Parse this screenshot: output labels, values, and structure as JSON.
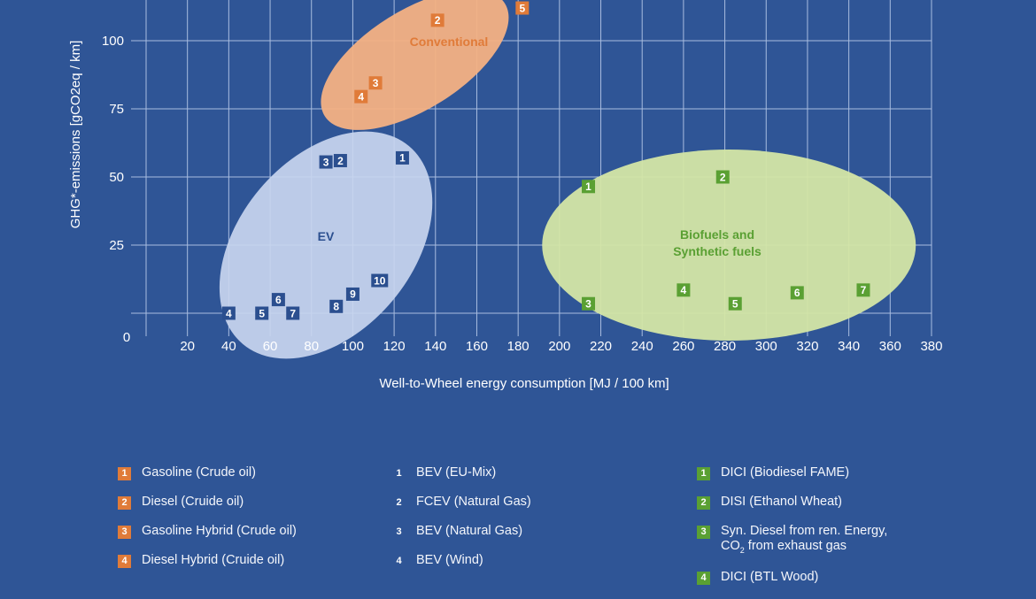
{
  "chart_data": {
    "type": "scatter",
    "title": "",
    "xlabel": "Well-to-Wheel energy consumption [MJ / 100 km]",
    "ylabel": "GHG*-emissions [gCO2eq / km]",
    "xlim": [
      0,
      380
    ],
    "ylim": [
      -8,
      115
    ],
    "x_ticks": [
      20,
      40,
      60,
      80,
      100,
      120,
      140,
      160,
      180,
      200,
      220,
      240,
      260,
      280,
      300,
      320,
      340,
      360,
      380
    ],
    "y_ticks": [
      25,
      50,
      75,
      100
    ],
    "origin_label": "0",
    "grid": true,
    "groups": [
      {
        "name": "Conventional",
        "color": "#e07b39",
        "ellipse_color": "#f4b183"
      },
      {
        "name": "EV",
        "color": "#2b4f8f",
        "ellipse_color": "#c9d6ef"
      },
      {
        "name": "Biofuels and Synthetic fuels",
        "color": "#5aa033",
        "ellipse_color": "#d4e6a5"
      }
    ],
    "series": [
      {
        "name": "Conventional",
        "points": [
          {
            "id": "2",
            "x": 141,
            "y": 107.5
          },
          {
            "id": "5",
            "x": 182,
            "y": 112
          },
          {
            "id": "3",
            "x": 111,
            "y": 84.5
          },
          {
            "id": "4",
            "x": 104,
            "y": 79.5
          }
        ]
      },
      {
        "name": "EV",
        "points": [
          {
            "id": "1",
            "x": 124,
            "y": 57
          },
          {
            "id": "2",
            "x": 94,
            "y": 56
          },
          {
            "id": "3",
            "x": 87,
            "y": 55.5
          },
          {
            "id": "10",
            "x": 113,
            "y": 12
          },
          {
            "id": "9",
            "x": 100,
            "y": 7
          },
          {
            "id": "8",
            "x": 92,
            "y": 2.5
          },
          {
            "id": "6",
            "x": 64,
            "y": 5
          },
          {
            "id": "7",
            "x": 71,
            "y": 0
          },
          {
            "id": "5",
            "x": 56,
            "y": 0
          },
          {
            "id": "4",
            "x": 40,
            "y": 0
          }
        ]
      },
      {
        "name": "Biofuels and Synthetic fuels",
        "points": [
          {
            "id": "1",
            "x": 214,
            "y": 46.5
          },
          {
            "id": "2",
            "x": 279,
            "y": 50
          },
          {
            "id": "3",
            "x": 214,
            "y": 3.5
          },
          {
            "id": "4",
            "x": 260,
            "y": 8.5
          },
          {
            "id": "5",
            "x": 285,
            "y": 3.5
          },
          {
            "id": "6",
            "x": 315,
            "y": 7.5
          },
          {
            "id": "7",
            "x": 347,
            "y": 8.5
          }
        ]
      }
    ]
  },
  "legend": {
    "col1": [
      {
        "num": "1",
        "label": "Gasoline (Crude oil)"
      },
      {
        "num": "2",
        "label": "Diesel (Cruide oil)"
      },
      {
        "num": "3",
        "label": "Gasoline Hybrid (Crude oil)"
      },
      {
        "num": "4",
        "label": "Diesel Hybrid (Cruide oil)"
      }
    ],
    "col2": [
      {
        "num": "1",
        "label": "BEV (EU-Mix)"
      },
      {
        "num": "2",
        "label": "FCEV (Natural Gas)"
      },
      {
        "num": "3",
        "label": "BEV (Natural Gas)"
      },
      {
        "num": "4",
        "label": "BEV (Wind)"
      }
    ],
    "col3": [
      {
        "num": "1",
        "label": "DICI (Biodiesel FAME)"
      },
      {
        "num": "2",
        "label": "DISI (Ethanol Wheat)"
      },
      {
        "num": "3",
        "label_line1": "Syn. Diesel from ren. Energy,",
        "label_line2_pre": "CO",
        "label_line2_sub": "2",
        "label_line2_post": " from exhaust gas"
      },
      {
        "num": "4",
        "label": "DICI (BTL Wood)"
      }
    ]
  }
}
